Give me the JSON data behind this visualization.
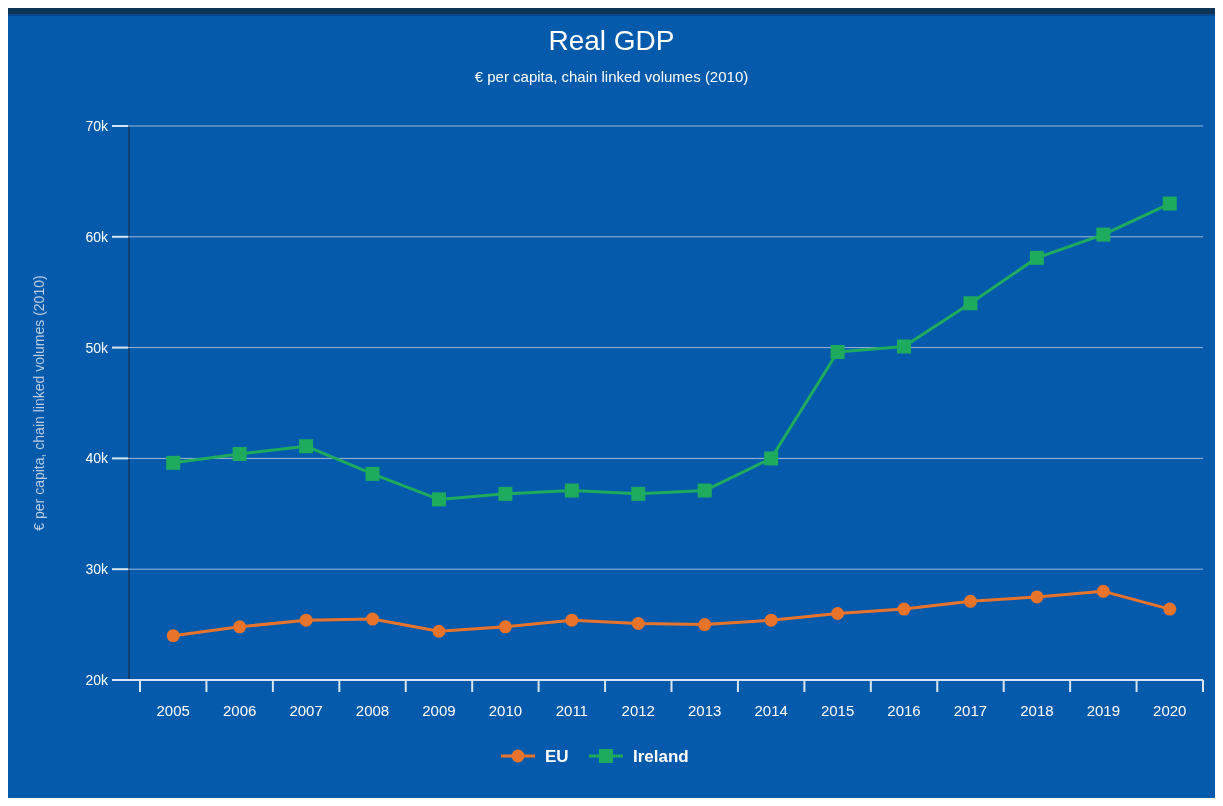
{
  "chart_data": {
    "type": "line",
    "title": "Real GDP",
    "subtitle": "€ per capita, chain linked volumes (2010)",
    "ylabel": "€ per capita, chain linked volumes (2010)",
    "categories": [
      "2005",
      "2006",
      "2007",
      "2008",
      "2009",
      "2010",
      "2011",
      "2012",
      "2013",
      "2014",
      "2015",
      "2016",
      "2017",
      "2018",
      "2019",
      "2020"
    ],
    "series": [
      {
        "name": "EU",
        "color": "#e8732a",
        "marker": "circle",
        "values": [
          24000,
          24800,
          25400,
          25500,
          24400,
          24800,
          25400,
          25100,
          25000,
          25400,
          26000,
          26400,
          27100,
          27500,
          28000,
          26400
        ]
      },
      {
        "name": "Ireland",
        "color": "#1fab5e",
        "marker": "square",
        "values": [
          39600,
          40400,
          41100,
          38600,
          36300,
          36800,
          37100,
          36800,
          37100,
          40000,
          49600,
          50100,
          54000,
          58100,
          60200,
          63000
        ]
      }
    ],
    "ylim": [
      20000,
      70000
    ],
    "yticks": [
      {
        "value": 20000,
        "label": "20k"
      },
      {
        "value": 30000,
        "label": "30k"
      },
      {
        "value": 40000,
        "label": "40k"
      },
      {
        "value": 50000,
        "label": "50k"
      },
      {
        "value": 60000,
        "label": "60k"
      },
      {
        "value": 70000,
        "label": "70k"
      }
    ],
    "grid": "y",
    "legend": "bottom",
    "line_style": "solid"
  }
}
